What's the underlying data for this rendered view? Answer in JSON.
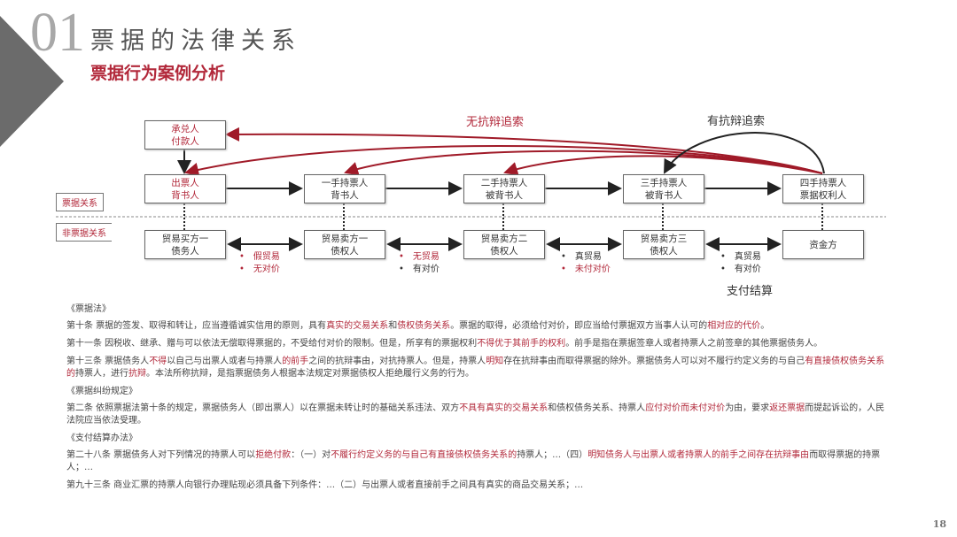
{
  "header": {
    "number": "01",
    "title": "票据的法律关系",
    "subtitle": "票据行为案例分析"
  },
  "diagram": {
    "top_box": [
      "承兑人",
      "付款人"
    ],
    "bill_row": [
      [
        "出票人",
        "背书人"
      ],
      [
        "一手持票人",
        "背书人"
      ],
      [
        "二手持票人",
        "被背书人"
      ],
      [
        "三手持票人",
        "被背书人"
      ],
      [
        "四手持票人",
        "票据权利人"
      ]
    ],
    "trade_row": [
      [
        "贸易买方一",
        "债务人"
      ],
      [
        "贸易卖方一",
        "债权人"
      ],
      [
        "贸易卖方二",
        "债权人"
      ],
      [
        "贸易卖方三",
        "债权人"
      ],
      [
        "资金方"
      ]
    ],
    "side_labels": {
      "bill": "票据关系",
      "non_bill": "非票据关系"
    },
    "gap_notes": [
      [
        {
          "text": "假贸易",
          "red": true
        },
        {
          "text": "无对价",
          "red": true
        }
      ],
      [
        {
          "text": "无贸易",
          "red": true
        },
        {
          "text": "有对价",
          "red": false
        }
      ],
      [
        {
          "text": "真贸易",
          "red": false
        },
        {
          "text": "未付对价",
          "red": true
        }
      ],
      [
        {
          "text": "真贸易",
          "red": false
        },
        {
          "text": "有对价",
          "red": false
        }
      ]
    ],
    "no_defense_label": "无抗辩追索",
    "defense_label": "有抗辩追索",
    "settlement_label": "支付结算",
    "colors": {
      "accent": "#b2283a",
      "line": "#222222"
    }
  },
  "laws": [
    {
      "source": "《票据法》",
      "articles": [
        [
          {
            "t": "第十条 票据的签发、取得和转让，应当遵循诚实信用的原则，具有"
          },
          {
            "t": "真实的交易关系",
            "r": 1
          },
          {
            "t": "和"
          },
          {
            "t": "债权债务关系",
            "r": 1
          },
          {
            "t": "。票据的取得，必须给付对价，即应当给付票据双方当事人认可的"
          },
          {
            "t": "相对应的代价",
            "r": 1
          },
          {
            "t": "。"
          }
        ],
        [
          {
            "t": "第十一条 因税收、继承、赠与可以依法无偿取得票据的，不受给付对价的限制。但是，所享有的票据权利"
          },
          {
            "t": "不得优于其前手的权利",
            "r": 1
          },
          {
            "t": "。前手是指在票据签章人或者持票人之前签章的其他票据债务人。"
          }
        ],
        [
          {
            "t": "第十三条 票据债务人"
          },
          {
            "t": "不得",
            "r": 1
          },
          {
            "t": "以自己与出票人或者与持票人"
          },
          {
            "t": "的前手",
            "r": 1
          },
          {
            "t": "之间的抗辩事由，对抗持票人。但是，持票人"
          },
          {
            "t": "明知",
            "r": 1
          },
          {
            "t": "存在抗辩事由而取得票据的除外。票据债务人可以对不履行约定义务的与自己"
          },
          {
            "t": "有直接债权债务关系的",
            "r": 1
          },
          {
            "t": "持票人，进行"
          },
          {
            "t": "抗辩",
            "r": 1
          },
          {
            "t": "。本法所称抗辩，是指票据债务人根据本法规定对票据债权人拒绝履行义务的行为。"
          }
        ]
      ]
    },
    {
      "source": "《票据纠纷规定》",
      "articles": [
        [
          {
            "t": "第二条 依照票据法第十条的规定，票据债务人（即出票人）以在票据未转让时的基础关系违法、双方"
          },
          {
            "t": "不具有真实的交易关系",
            "r": 1
          },
          {
            "t": "和债权债务关系、持票人"
          },
          {
            "t": "应付对价而未付对价",
            "r": 1
          },
          {
            "t": "为由，要求"
          },
          {
            "t": "返还票据",
            "r": 1
          },
          {
            "t": "而提起诉讼的，人民法院应当依法受理。"
          }
        ]
      ]
    },
    {
      "source": "《支付结算办法》",
      "articles": [
        [
          {
            "t": "第二十八条 票据债务人对下列情况的持票人可以"
          },
          {
            "t": "拒绝付款",
            "r": 1
          },
          {
            "t": "：（一）对"
          },
          {
            "t": "不履行约定义务的与自己有直接债权债务关系的",
            "r": 1
          },
          {
            "t": "持票人；…（四）"
          },
          {
            "t": "明知债务人与出票人或者持票人的前手之间存在抗辩事由",
            "r": 1
          },
          {
            "t": "而取得票据的持票人；…"
          }
        ],
        [
          {
            "t": "第九十三条 商业汇票的持票人向银行办理贴现必须具备下列条件：…（二）与出票人或者直接前手之间具有真实的商品交易关系；…"
          }
        ]
      ]
    }
  ],
  "page_number": "18"
}
